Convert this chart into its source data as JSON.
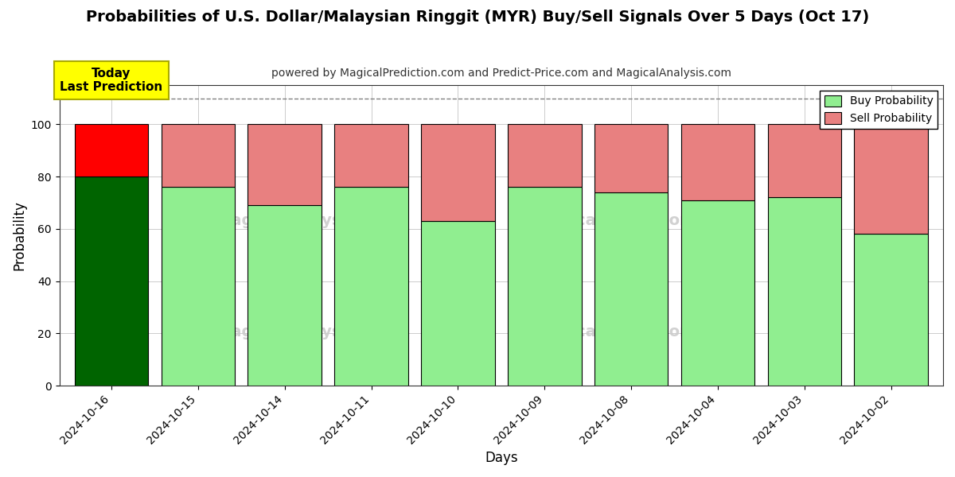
{
  "title": "Probabilities of U.S. Dollar/Malaysian Ringgit (MYR) Buy/Sell Signals Over 5 Days (Oct 17)",
  "subtitle": "powered by MagicalPrediction.com and Predict-Price.com and MagicalAnalysis.com",
  "xlabel": "Days",
  "ylabel": "Probability",
  "categories": [
    "2024-10-16",
    "2024-10-15",
    "2024-10-14",
    "2024-10-11",
    "2024-10-10",
    "2024-10-09",
    "2024-10-08",
    "2024-10-04",
    "2024-10-03",
    "2024-10-02"
  ],
  "buy_values": [
    80,
    76,
    69,
    76,
    63,
    76,
    74,
    71,
    72,
    58
  ],
  "sell_values": [
    20,
    24,
    31,
    24,
    37,
    24,
    26,
    29,
    28,
    42
  ],
  "today_idx": 0,
  "today_label_line1": "Today",
  "today_label_line2": "Last Prediction",
  "buy_color_today": "#006400",
  "sell_color_today": "#FF0000",
  "buy_color_normal": "#90EE90",
  "sell_color_normal": "#E88080",
  "today_box_color": "#FFFF00",
  "today_box_edge": "#AAAA00",
  "legend_buy_label": "Buy Probability",
  "legend_sell_label": "Sell Probability",
  "ylim": [
    0,
    115
  ],
  "yticks": [
    0,
    20,
    40,
    60,
    80,
    100
  ],
  "dashed_line_y": 110,
  "watermarks": [
    "MagicalAnalysis.com",
    "MagicalPrediction.com"
  ],
  "background_color": "#FFFFFF",
  "grid_color": "#CCCCCC",
  "bar_edge_color": "#000000",
  "bar_linewidth": 0.8,
  "bar_width": 0.85
}
